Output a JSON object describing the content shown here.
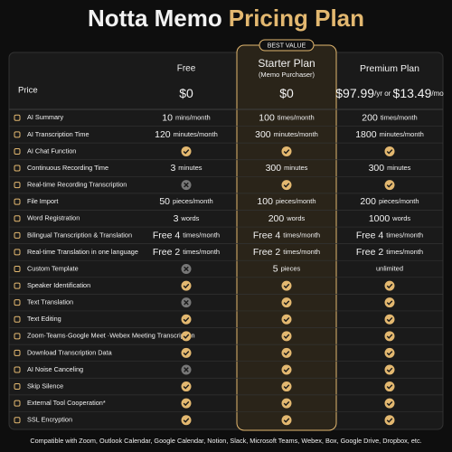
{
  "header": {
    "title_parts": [
      "Notta Memo",
      "Pricing Plan"
    ]
  },
  "table": {
    "price_label": "Price",
    "plans": [
      {
        "name": "Free",
        "price": [
          "$0"
        ]
      },
      {
        "name": "Starter Plan",
        "subtitle": "(Memo Purchaser)",
        "badge": "BEST VALUE",
        "price": [
          "$0"
        ],
        "highlighted": true
      },
      {
        "name": "Premium Plan",
        "price": [
          "$97.99",
          "/yr or ",
          "$13.49",
          "/mo"
        ]
      }
    ],
    "rows": [
      {
        "label": "AI Summary",
        "cells": [
          {
            "amount": "10",
            "unit": "mins/month"
          },
          {
            "amount": "100",
            "unit": "times/month"
          },
          {
            "amount": "200",
            "unit": "times/month"
          }
        ]
      },
      {
        "label": "AI Transcription Time",
        "cells": [
          {
            "amount": "120",
            "unit": "minutes/month"
          },
          {
            "amount": "300",
            "unit": "minutes/month"
          },
          {
            "amount": "1800",
            "unit": "minutes/month"
          }
        ]
      },
      {
        "label": "AI Chat Function",
        "cells": [
          true,
          true,
          true
        ]
      },
      {
        "label": "Continuous Recording Time",
        "cells": [
          {
            "amount": "3",
            "unit": "minutes"
          },
          {
            "amount": "300",
            "unit": "minutes"
          },
          {
            "amount": "300",
            "unit": "minutes"
          }
        ]
      },
      {
        "label": "Real-time Recording Transcription",
        "cells": [
          false,
          true,
          true
        ]
      },
      {
        "label": "File Import",
        "cells": [
          {
            "amount": "50",
            "unit": "pieces/month"
          },
          {
            "amount": "100",
            "unit": "pieces/month"
          },
          {
            "amount": "200",
            "unit": "pieces/month"
          }
        ]
      },
      {
        "label": "Word Registration",
        "cells": [
          {
            "amount": "3",
            "unit": "words"
          },
          {
            "amount": "200",
            "unit": "words"
          },
          {
            "amount": "1000",
            "unit": "words"
          }
        ]
      },
      {
        "label": "Bilingual Transcription & Translation",
        "cells": [
          {
            "amount": "Free 4",
            "unit": "times/month"
          },
          {
            "amount": "Free 4",
            "unit": "times/month"
          },
          {
            "amount": "Free 4",
            "unit": "times/month"
          }
        ]
      },
      {
        "label": "Real-time Translation in one language",
        "cells": [
          {
            "amount": "Free 2",
            "unit": "times/month"
          },
          {
            "amount": "Free 2",
            "unit": "times/month"
          },
          {
            "amount": "Free 2",
            "unit": "times/month"
          }
        ]
      },
      {
        "label": "Custom Template",
        "cells": [
          false,
          {
            "amount": "5",
            "unit": "pieces"
          },
          {
            "unit": "unlimited"
          }
        ]
      },
      {
        "label": "Speaker Identification",
        "cells": [
          true,
          true,
          true
        ]
      },
      {
        "label": "Text Translation",
        "cells": [
          false,
          true,
          true
        ]
      },
      {
        "label": "Text Editing",
        "cells": [
          true,
          true,
          true
        ]
      },
      {
        "label": "Zoom·Teams·Google Meet ·Webex Meeting Transcription",
        "cells": [
          true,
          true,
          true
        ]
      },
      {
        "label": "Download Transcription Data",
        "cells": [
          true,
          true,
          true
        ]
      },
      {
        "label": "AI Noise Canceling",
        "cells": [
          false,
          true,
          true
        ]
      },
      {
        "label": "Skip Silence",
        "cells": [
          true,
          true,
          true
        ]
      },
      {
        "label": "External Tool Cooperation*",
        "cells": [
          true,
          true,
          true
        ]
      },
      {
        "label": "SSL Encryption",
        "cells": [
          true,
          true,
          true
        ]
      }
    ]
  },
  "footer": {
    "note": "Compatible with Zoom, Outlook Calendar, Google Calendar, Notion, Slack, Microsoft Teams, Webex, Box, Google Drive, Dropbox, etc."
  }
}
